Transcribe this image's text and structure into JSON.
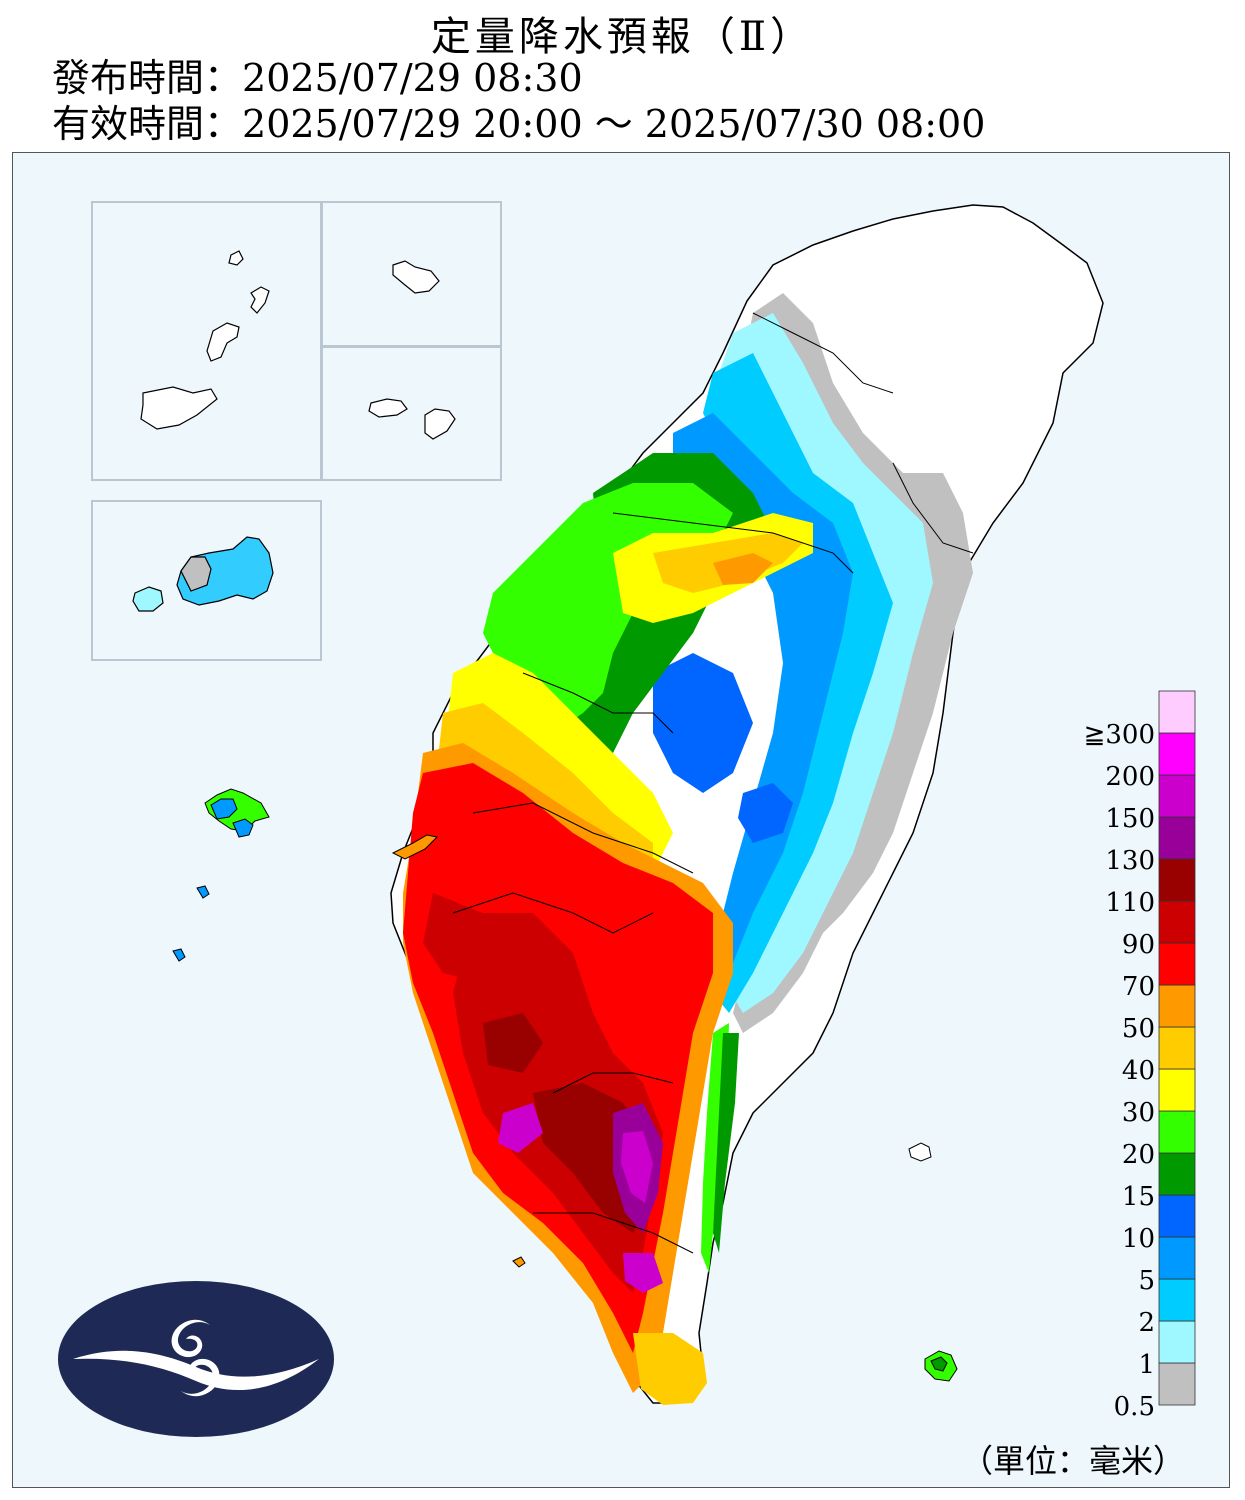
{
  "header": {
    "title": "定量降水預報（Ⅱ）",
    "issue_label": "發布時間：",
    "issue_time": "2025/07/29 08:30",
    "valid_label": "有效時間：",
    "valid_time": "2025/07/29 20:00 ～ 2025/07/30 08:00"
  },
  "legend": {
    "unit_label": "（單位：毫米）",
    "bins": [
      {
        "label": "0.5",
        "color": "#c0c0c0"
      },
      {
        "label": "1",
        "color": "#9ff7ff"
      },
      {
        "label": "2",
        "color": "#00ccff"
      },
      {
        "label": "5",
        "color": "#0099ff"
      },
      {
        "label": "10",
        "color": "#0066ff"
      },
      {
        "label": "15",
        "color": "#009900"
      },
      {
        "label": "20",
        "color": "#33ff00"
      },
      {
        "label": "30",
        "color": "#ffff00"
      },
      {
        "label": "40",
        "color": "#ffcc00"
      },
      {
        "label": "50",
        "color": "#ff9900"
      },
      {
        "label": "70",
        "color": "#ff0000"
      },
      {
        "label": "90",
        "color": "#cc0000"
      },
      {
        "label": "110",
        "color": "#990000"
      },
      {
        "label": "130",
        "color": "#990099"
      },
      {
        "label": "150",
        "color": "#cc00cc"
      },
      {
        "label": "200",
        "color": "#ff00ff"
      },
      {
        "label": "≧300",
        "color": "#ffccff"
      }
    ]
  },
  "map": {
    "background_color": "#eef7fc",
    "logo_icon": "cwa-logo-icon"
  }
}
